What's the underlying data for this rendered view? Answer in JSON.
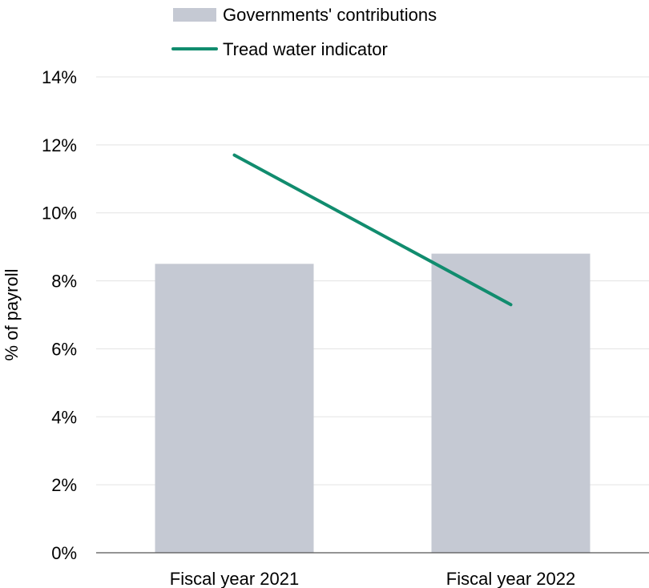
{
  "chart_data": {
    "type": "bar",
    "categories": [
      "Fiscal year 2021",
      "Fiscal year 2022"
    ],
    "series": [
      {
        "name": "Governments' contributions",
        "kind": "bar",
        "color": "#c5c9d3",
        "values": [
          8.5,
          8.8
        ]
      },
      {
        "name": "Tread water indicator",
        "kind": "line",
        "color": "#118c6e",
        "values": [
          11.7,
          7.3
        ]
      }
    ],
    "ylabel": "% of payroll",
    "xlabel": "",
    "ylim": [
      0,
      14
    ],
    "yticks": [
      0,
      2,
      4,
      6,
      8,
      10,
      12,
      14
    ],
    "ytick_labels": [
      "0%",
      "2%",
      "4%",
      "6%",
      "8%",
      "10%",
      "12%",
      "14%"
    ],
    "grid": true,
    "legend_position": "top"
  }
}
